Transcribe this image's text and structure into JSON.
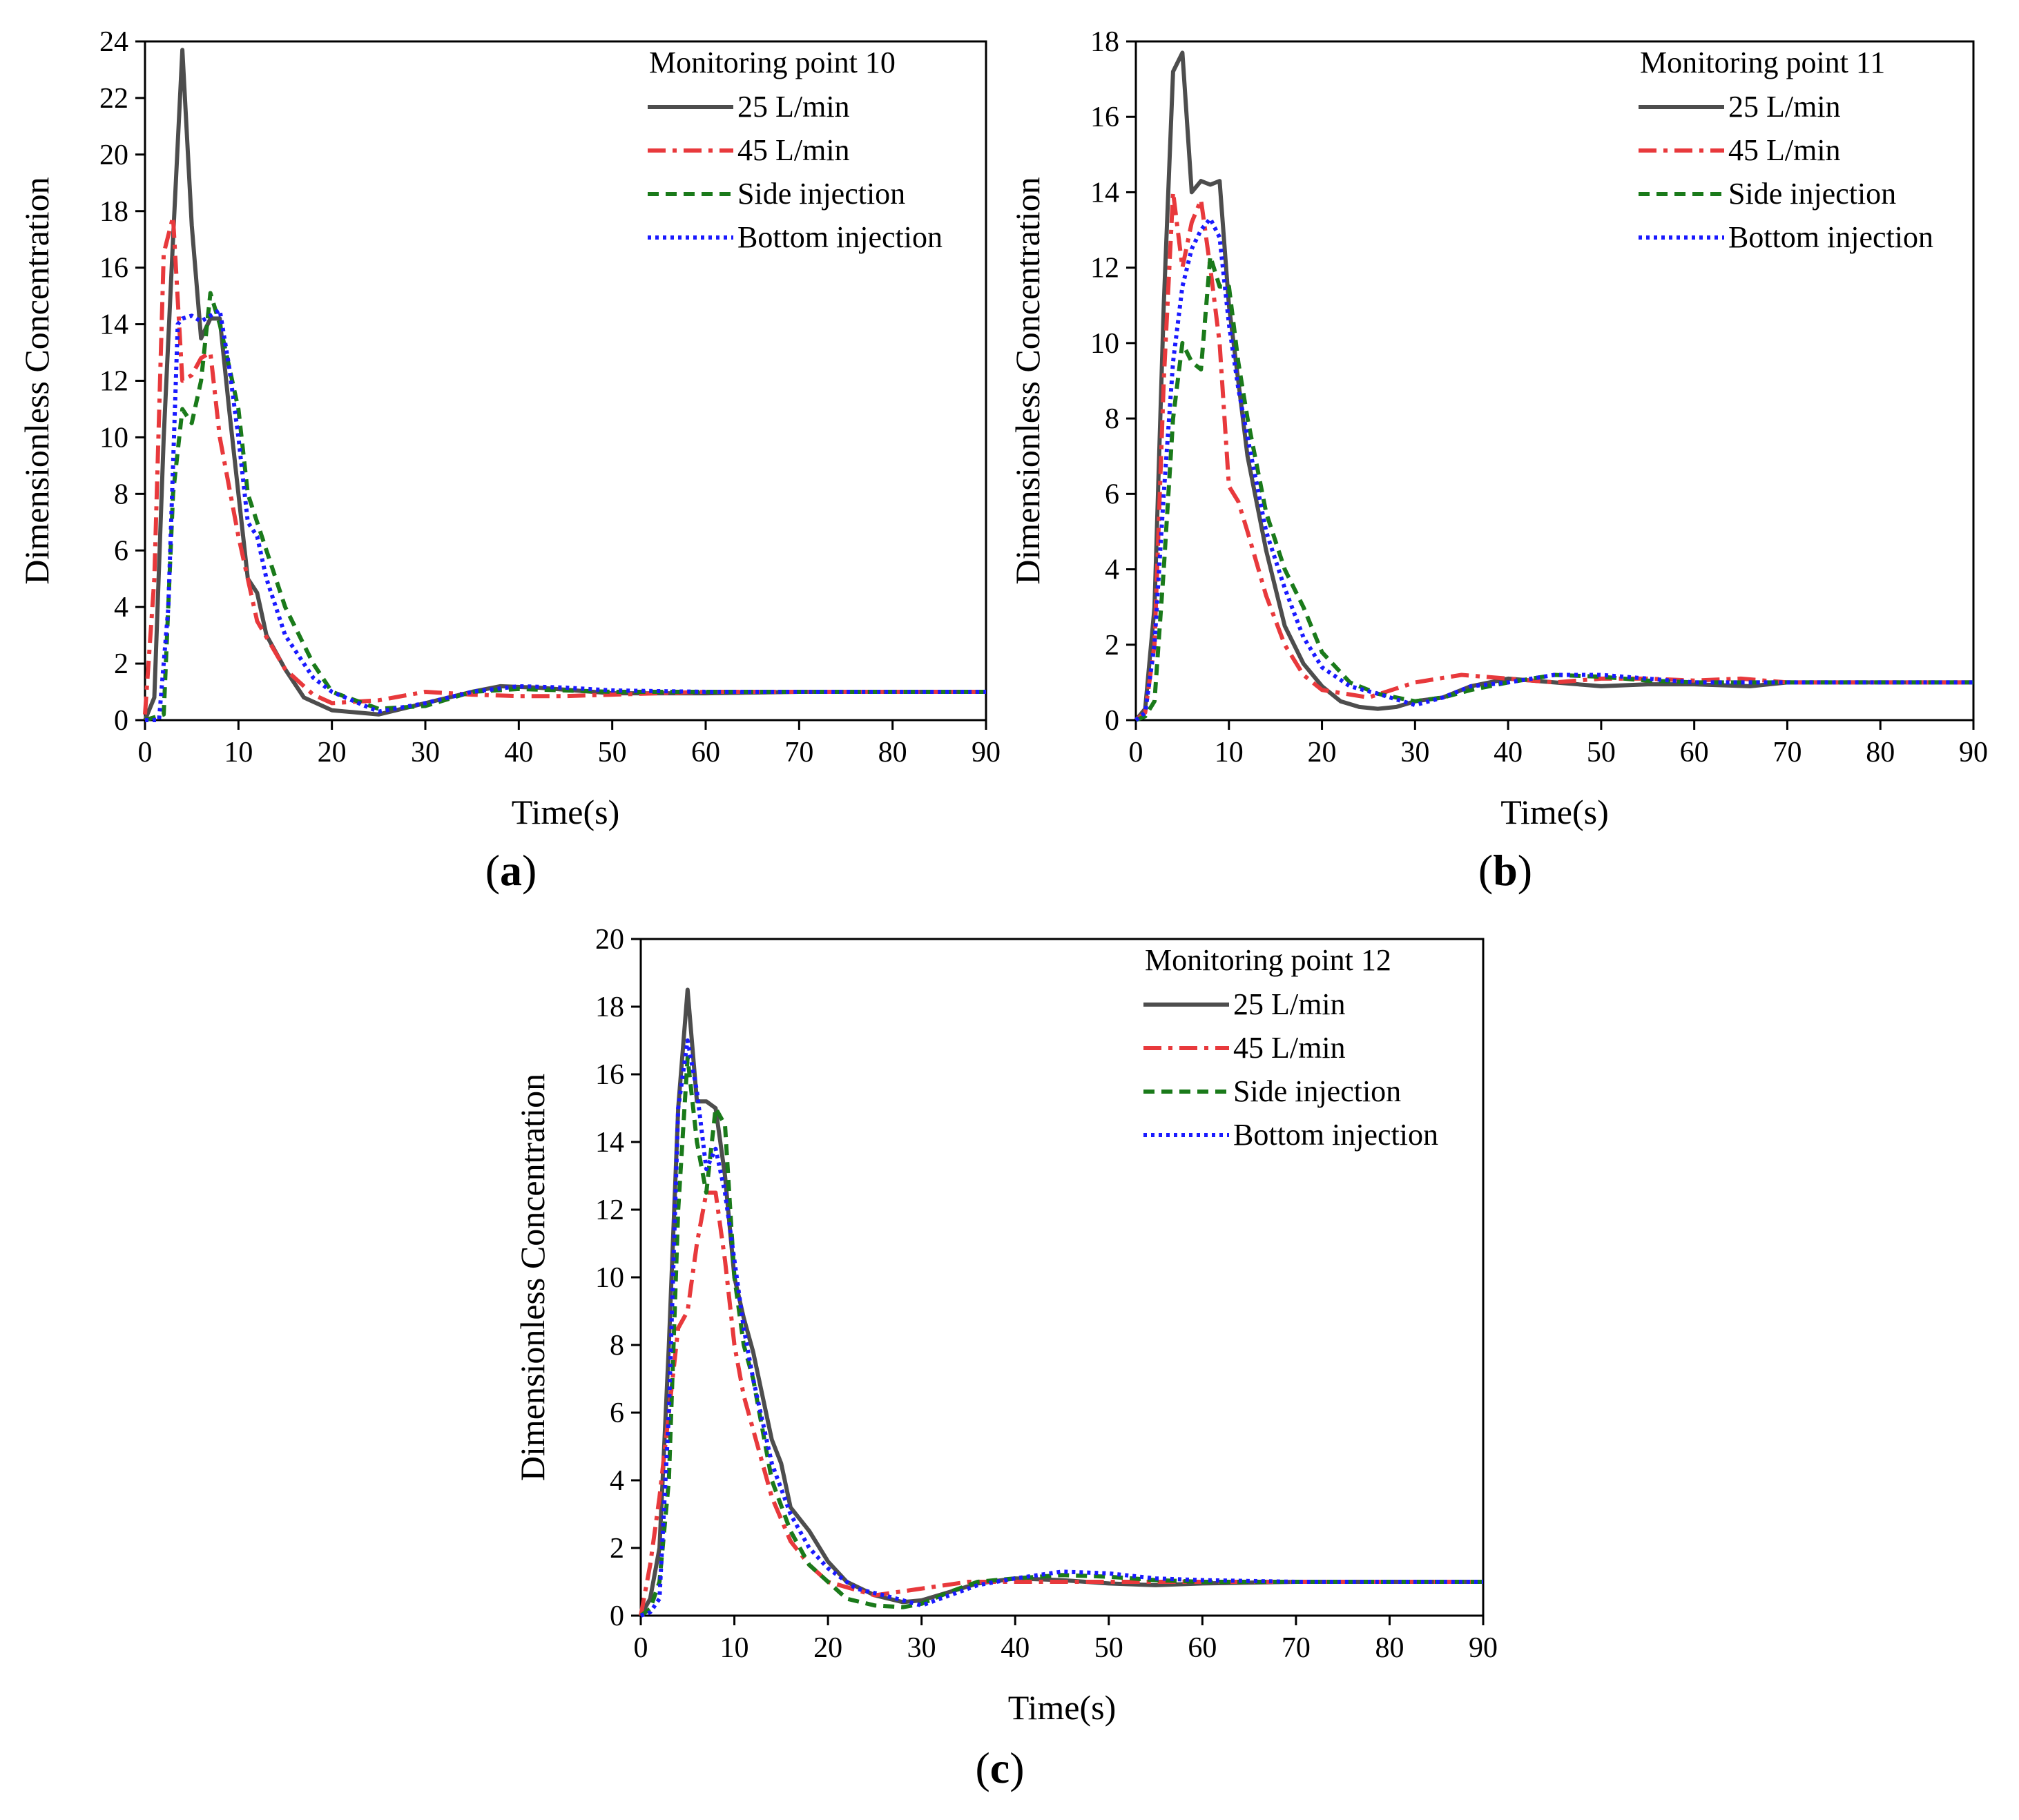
{
  "figure": {
    "series_styles": [
      {
        "name": "25 L/min",
        "color": "#4d4d4d",
        "dash": "solid"
      },
      {
        "name": "45 L/min",
        "color": "#e8393c",
        "dash": "dashdot"
      },
      {
        "name": "Side injection",
        "color": "#1a7a1a",
        "dash": "dashed"
      },
      {
        "name": "Bottom injection",
        "color": "#1a1aff",
        "dash": "dotted"
      }
    ]
  },
  "chart_data": [
    {
      "type": "line",
      "panel_label": "a",
      "title": "Monitoring point 10",
      "xlabel": "Time(s)",
      "ylabel": "Dimensionless Concentration",
      "xlim": [
        0,
        90
      ],
      "ylim": [
        0,
        24
      ],
      "xticks": [
        0,
        10,
        20,
        30,
        40,
        50,
        60,
        70,
        80,
        90
      ],
      "yticks": [
        0,
        2,
        4,
        6,
        8,
        10,
        12,
        14,
        16,
        18,
        20,
        22,
        24
      ],
      "series": [
        {
          "name": "25 L/min",
          "x": [
            0,
            1,
            2,
            3,
            4,
            5,
            6,
            7,
            8,
            9,
            10,
            11,
            12,
            13,
            15,
            17,
            20,
            25,
            30,
            35,
            38,
            42,
            50,
            60,
            70,
            80,
            90
          ],
          "y": [
            0,
            0.8,
            10,
            17,
            23.7,
            17.5,
            13.5,
            14.2,
            14.2,
            11,
            8,
            5,
            4.5,
            3,
            1.8,
            0.8,
            0.35,
            0.2,
            0.6,
            1.0,
            1.2,
            1.15,
            0.95,
            0.95,
            1.0,
            1.0,
            1.0
          ]
        },
        {
          "name": "45 L/min",
          "x": [
            0,
            1,
            2,
            3,
            4,
            5,
            6,
            7,
            8,
            10,
            12,
            15,
            18,
            20,
            25,
            30,
            35,
            40,
            45,
            50,
            60,
            70,
            80,
            90
          ],
          "y": [
            0.2,
            5,
            16.5,
            17.8,
            12,
            12.2,
            12.8,
            13,
            10,
            6.5,
            3.5,
            1.8,
            0.9,
            0.6,
            0.7,
            1.0,
            0.9,
            0.85,
            0.85,
            0.9,
            1.0,
            1.0,
            1.0,
            1.0
          ]
        },
        {
          "name": "Side injection",
          "x": [
            0,
            2,
            3,
            4,
            5,
            6,
            7,
            8,
            9,
            10,
            11,
            12,
            13,
            15,
            18,
            20,
            25,
            30,
            35,
            40,
            45,
            50,
            60,
            70,
            80,
            90
          ],
          "y": [
            0,
            0.2,
            8,
            11,
            10.5,
            12,
            15.1,
            14,
            12.5,
            11,
            8,
            7,
            6,
            4,
            2,
            1,
            0.4,
            0.5,
            1.0,
            1.1,
            1.05,
            1.0,
            1.0,
            1.0,
            1.0,
            1.0
          ]
        },
        {
          "name": "Bottom injection",
          "x": [
            0,
            1.5,
            2.5,
            3.5,
            4,
            5,
            6,
            7,
            8,
            9,
            10,
            11,
            12,
            13,
            15,
            18,
            20,
            25,
            30,
            35,
            40,
            45,
            50,
            60,
            70,
            80,
            90
          ],
          "y": [
            0,
            0,
            4,
            14,
            14.2,
            14.3,
            14.1,
            14.3,
            14.5,
            12.5,
            10,
            7,
            6.5,
            5,
            3,
            1.5,
            1.0,
            0.3,
            0.6,
            1.0,
            1.2,
            1.15,
            1.05,
            1.0,
            1.0,
            1.0,
            1.0
          ]
        }
      ]
    },
    {
      "type": "line",
      "panel_label": "b",
      "title": "Monitoring point 11",
      "xlabel": "Time(s)",
      "ylabel": "Dimensionless Concentration",
      "xlim": [
        0,
        90
      ],
      "ylim": [
        0,
        18
      ],
      "xticks": [
        0,
        10,
        20,
        30,
        40,
        50,
        60,
        70,
        80,
        90
      ],
      "yticks": [
        0,
        2,
        4,
        6,
        8,
        10,
        12,
        14,
        16,
        18
      ],
      "series": [
        {
          "name": "25 L/min",
          "x": [
            0,
            1,
            2,
            3,
            4,
            5,
            6,
            7,
            8,
            9,
            10,
            11,
            12,
            14,
            16,
            18,
            20,
            22,
            24,
            26,
            28,
            30,
            33,
            36,
            40,
            45,
            50,
            55,
            60,
            66,
            70,
            80,
            90
          ],
          "y": [
            0,
            0.3,
            3,
            11,
            17.2,
            17.7,
            14,
            14.3,
            14.2,
            14.3,
            11,
            9,
            7,
            4.5,
            2.5,
            1.5,
            0.9,
            0.5,
            0.35,
            0.3,
            0.35,
            0.5,
            0.6,
            0.9,
            1.1,
            1.0,
            0.9,
            0.95,
            0.95,
            0.9,
            1.0,
            1.0,
            1.0
          ]
        },
        {
          "name": "45 L/min",
          "x": [
            0,
            1,
            2,
            3,
            4,
            5,
            6,
            7,
            8,
            9,
            10,
            11,
            12,
            14,
            16,
            18,
            20,
            25,
            30,
            35,
            40,
            45,
            50,
            55,
            60,
            65,
            70,
            80,
            90
          ],
          "y": [
            0,
            0.2,
            2,
            9,
            14,
            12,
            13.2,
            13.8,
            12,
            10,
            6.2,
            5.8,
            5,
            3.3,
            2,
            1.2,
            0.8,
            0.6,
            1.0,
            1.2,
            1.1,
            1.0,
            1.1,
            1.1,
            1.05,
            1.1,
            1.0,
            1.0,
            1.0
          ]
        },
        {
          "name": "Side injection",
          "x": [
            0,
            1,
            2,
            3,
            4,
            5,
            6,
            7,
            8,
            9,
            10,
            11,
            12,
            14,
            16,
            18,
            20,
            23,
            26,
            30,
            33,
            36,
            40,
            45,
            50,
            55,
            60,
            70,
            80,
            90
          ],
          "y": [
            0,
            0.1,
            0.5,
            4,
            8,
            10,
            9.5,
            9.3,
            12.3,
            11.5,
            11.5,
            9.5,
            8,
            5.5,
            4,
            3,
            1.8,
            1.0,
            0.7,
            0.5,
            0.6,
            0.8,
            1.0,
            1.2,
            1.15,
            1.05,
            1.0,
            1.0,
            1.0,
            1.0
          ]
        },
        {
          "name": "Bottom injection",
          "x": [
            0,
            1,
            2,
            3,
            4,
            5,
            6,
            7,
            8,
            9,
            10,
            11,
            12,
            14,
            16,
            18,
            20,
            23,
            26,
            30,
            33,
            36,
            40,
            45,
            50,
            55,
            60,
            70,
            80,
            90
          ],
          "y": [
            0,
            0.2,
            2,
            6,
            9.5,
            11.5,
            12.5,
            13,
            13.3,
            12.8,
            10.5,
            8.8,
            7.5,
            5,
            3.5,
            2.2,
            1.4,
            0.9,
            0.7,
            0.4,
            0.6,
            0.9,
            1.0,
            1.2,
            1.2,
            1.1,
            1.0,
            1.0,
            1.0,
            1.0
          ]
        }
      ]
    },
    {
      "type": "line",
      "panel_label": "c",
      "title": "Monitoring point 12",
      "xlabel": "Time(s)",
      "ylabel": "Dimensionless Concentration",
      "xlim": [
        0,
        90
      ],
      "ylim": [
        0,
        20
      ],
      "xticks": [
        0,
        10,
        20,
        30,
        40,
        50,
        60,
        70,
        80,
        90
      ],
      "yticks": [
        0,
        2,
        4,
        6,
        8,
        10,
        12,
        14,
        16,
        18,
        20
      ],
      "series": [
        {
          "name": "25 L/min",
          "x": [
            0,
            1,
            2,
            3,
            4,
            5,
            6,
            7,
            8,
            9,
            10,
            11,
            12,
            13,
            14,
            15,
            16,
            18,
            20,
            22,
            25,
            28,
            30,
            33,
            36,
            40,
            45,
            50,
            55,
            60,
            70,
            80,
            90
          ],
          "y": [
            0,
            0.5,
            2,
            8,
            15,
            18.5,
            15.2,
            15.2,
            15,
            13,
            10,
            8.8,
            7.8,
            6.5,
            5.2,
            4.5,
            3.2,
            2.5,
            1.6,
            1.0,
            0.6,
            0.4,
            0.45,
            0.7,
            0.95,
            1.1,
            1.05,
            0.95,
            0.9,
            0.95,
            1.0,
            1.0,
            1.0
          ]
        },
        {
          "name": "45 L/min",
          "x": [
            0,
            1,
            2,
            3,
            4,
            5,
            6,
            7,
            8,
            9,
            10,
            11,
            12,
            14,
            16,
            18,
            20,
            25,
            30,
            35,
            40,
            45,
            50,
            60,
            70,
            80,
            90
          ],
          "y": [
            0,
            1.5,
            3.5,
            6,
            8.5,
            9,
            11,
            12.5,
            12.5,
            10.5,
            8,
            6.5,
            5.5,
            3.5,
            2.2,
            1.5,
            1.0,
            0.6,
            0.8,
            1.0,
            1.0,
            1.0,
            1.0,
            1.0,
            1.0,
            1.0,
            1.0
          ]
        },
        {
          "name": "Side injection",
          "x": [
            0,
            1,
            2,
            3,
            4,
            5,
            6,
            7,
            8,
            9,
            10,
            11,
            12,
            14,
            16,
            18,
            20,
            22,
            25,
            28,
            30,
            33,
            36,
            40,
            45,
            50,
            55,
            60,
            70,
            80,
            90
          ],
          "y": [
            0,
            0.2,
            1,
            4,
            12,
            16.5,
            14,
            12.5,
            15,
            14.5,
            10,
            8,
            7,
            4,
            2.5,
            1.5,
            1.0,
            0.5,
            0.3,
            0.25,
            0.35,
            0.7,
            1.0,
            1.1,
            1.2,
            1.15,
            1.05,
            1.0,
            1.0,
            1.0,
            1.0
          ]
        },
        {
          "name": "Bottom injection",
          "x": [
            0,
            1,
            2,
            3,
            4,
            5,
            6,
            7,
            8,
            9,
            10,
            11,
            12,
            14,
            16,
            18,
            20,
            23,
            26,
            30,
            33,
            36,
            40,
            45,
            50,
            55,
            60,
            70,
            80,
            90
          ],
          "y": [
            0,
            0.1,
            0.5,
            6,
            15,
            17,
            15.5,
            13.2,
            13.8,
            12.5,
            10.5,
            8.5,
            7,
            4.5,
            3,
            2,
            1.4,
            0.8,
            0.6,
            0.3,
            0.6,
            0.9,
            1.1,
            1.3,
            1.25,
            1.1,
            1.05,
            1.0,
            1.0,
            1.0
          ]
        }
      ]
    }
  ]
}
